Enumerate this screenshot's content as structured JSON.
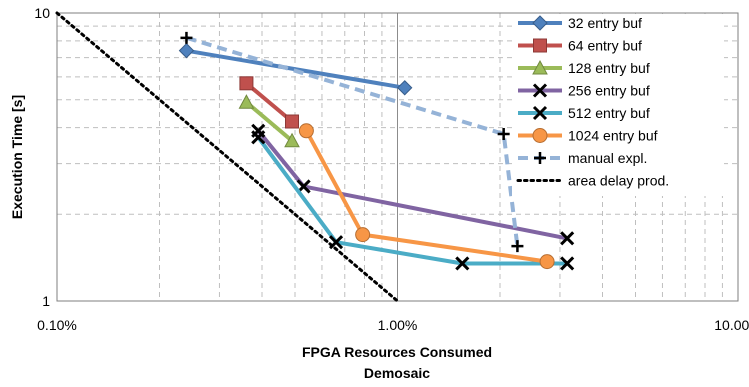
{
  "chart_data": {
    "type": "line",
    "title": "",
    "xlabel": "FPGA Resources Consumed",
    "xlabel_line2": "Demosaic",
    "ylabel": "Execution Time [s]",
    "x_scale": "log",
    "y_scale": "log",
    "xlim": [
      0.001,
      0.1
    ],
    "ylim": [
      1,
      10
    ],
    "x_ticks": [
      {
        "value": 0.001,
        "label": "0.10%"
      },
      {
        "value": 0.01,
        "label": "1.00%"
      },
      {
        "value": 0.1,
        "label": "10.00%"
      }
    ],
    "y_ticks": [
      {
        "value": 1,
        "label": "1"
      },
      {
        "value": 10,
        "label": "10"
      }
    ],
    "grid": true,
    "legend_position": "right",
    "series": [
      {
        "name": "32 entry buf",
        "color": "#4f81bd",
        "marker": "diamond",
        "dash": "solid",
        "points": [
          [
            0.0024,
            7.4
          ],
          [
            0.0105,
            5.5
          ]
        ]
      },
      {
        "name": "64 entry buf",
        "color": "#c0504d",
        "marker": "square",
        "dash": "solid",
        "points": [
          [
            0.0036,
            5.7
          ],
          [
            0.0049,
            4.2
          ]
        ]
      },
      {
        "name": "128 entry buf",
        "color": "#9bbb59",
        "marker": "triangle",
        "dash": "solid",
        "points": [
          [
            0.0036,
            4.9
          ],
          [
            0.0049,
            3.6
          ]
        ]
      },
      {
        "name": "256 entry buf",
        "color": "#8064a2",
        "marker": "x",
        "dash": "solid",
        "points": [
          [
            0.0039,
            3.9
          ],
          [
            0.0053,
            2.5
          ],
          [
            0.0315,
            1.65
          ]
        ]
      },
      {
        "name": "512 entry buf",
        "color": "#4bacc6",
        "marker": "x",
        "dash": "solid",
        "points": [
          [
            0.0039,
            3.7
          ],
          [
            0.0066,
            1.6
          ],
          [
            0.0155,
            1.35
          ],
          [
            0.0315,
            1.35
          ]
        ]
      },
      {
        "name": "1024 entry buf",
        "color": "#f79646",
        "marker": "circle",
        "dash": "solid",
        "points": [
          [
            0.0054,
            3.9
          ],
          [
            0.0079,
            1.7
          ],
          [
            0.0275,
            1.37
          ]
        ]
      },
      {
        "name": "manual expl.",
        "color": "#95b3d7",
        "marker": "plus",
        "dash": "dashed",
        "points": [
          [
            0.0024,
            8.2
          ],
          [
            0.0205,
            3.8
          ],
          [
            0.0225,
            1.55
          ]
        ]
      },
      {
        "name": "area delay prod.",
        "color": "#000000",
        "marker": "none",
        "dash": "dotted",
        "points": [
          [
            0.001,
            10
          ],
          [
            0.01,
            1
          ]
        ]
      }
    ]
  }
}
